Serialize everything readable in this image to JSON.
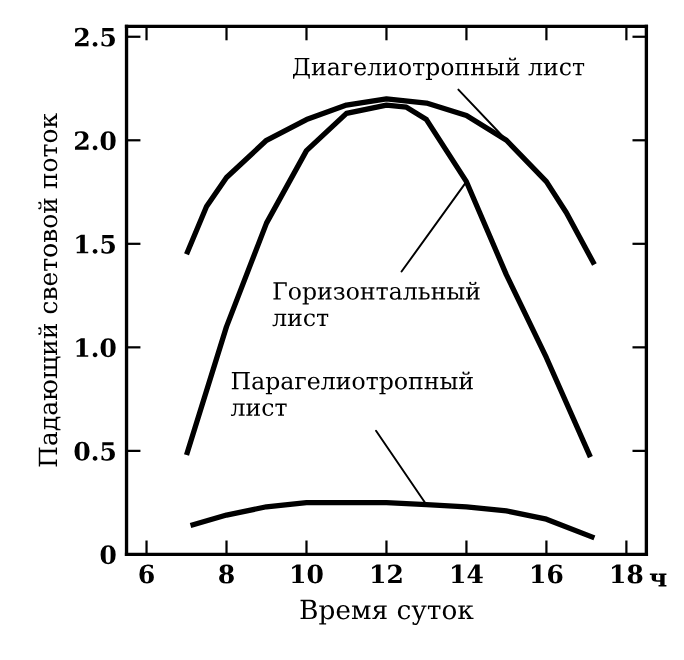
{
  "chart_data": {
    "type": "line",
    "xlabel": "Время суток",
    "ylabel": "Падающий световой поток",
    "xlim": [
      5.5,
      18.5
    ],
    "xticks": [
      6,
      8,
      10,
      12,
      14,
      16,
      18
    ],
    "ylim": [
      0,
      2.55
    ],
    "yticks": [
      0,
      {
        "value": 0.5,
        "label": "0.5"
      },
      {
        "value": 1.0,
        "label": "1.0"
      },
      {
        "value": 1.5,
        "label": "1.5"
      },
      {
        "value": 2.0,
        "label": "2.0"
      },
      {
        "value": 2.5,
        "label": "2.5"
      }
    ],
    "grid": false,
    "legend": "top",
    "marker": "none",
    "line_style": "solid",
    "annotations": [
      "ч"
    ],
    "series": [
      {
        "name": "Диагелиотропный лист",
        "color": "#000000",
        "x": [
          7.0,
          7.5,
          8,
          9,
          10,
          11,
          12,
          13,
          14,
          15,
          16,
          16.5,
          17.2
        ],
        "values": [
          1.45,
          1.68,
          1.82,
          2.0,
          2.1,
          2.17,
          2.2,
          2.18,
          2.12,
          2.0,
          1.8,
          1.65,
          1.4
        ]
      },
      {
        "name": "Горизонтальный\nлист",
        "color": "#000000",
        "x": [
          7.0,
          8,
          9,
          10,
          11,
          12,
          12.5,
          13,
          14,
          15,
          16,
          17.1
        ],
        "values": [
          0.48,
          1.1,
          1.6,
          1.95,
          2.13,
          2.17,
          2.16,
          2.1,
          1.8,
          1.35,
          0.95,
          0.47
        ]
      },
      {
        "name": "Парагелиотропный\nлист",
        "color": "#000000",
        "x": [
          7.1,
          8,
          9,
          10,
          11,
          12,
          13,
          14,
          15,
          16,
          17.2
        ],
        "values": [
          0.14,
          0.19,
          0.23,
          0.25,
          0.25,
          0.25,
          0.24,
          0.23,
          0.21,
          0.17,
          0.08
        ]
      }
    ]
  }
}
